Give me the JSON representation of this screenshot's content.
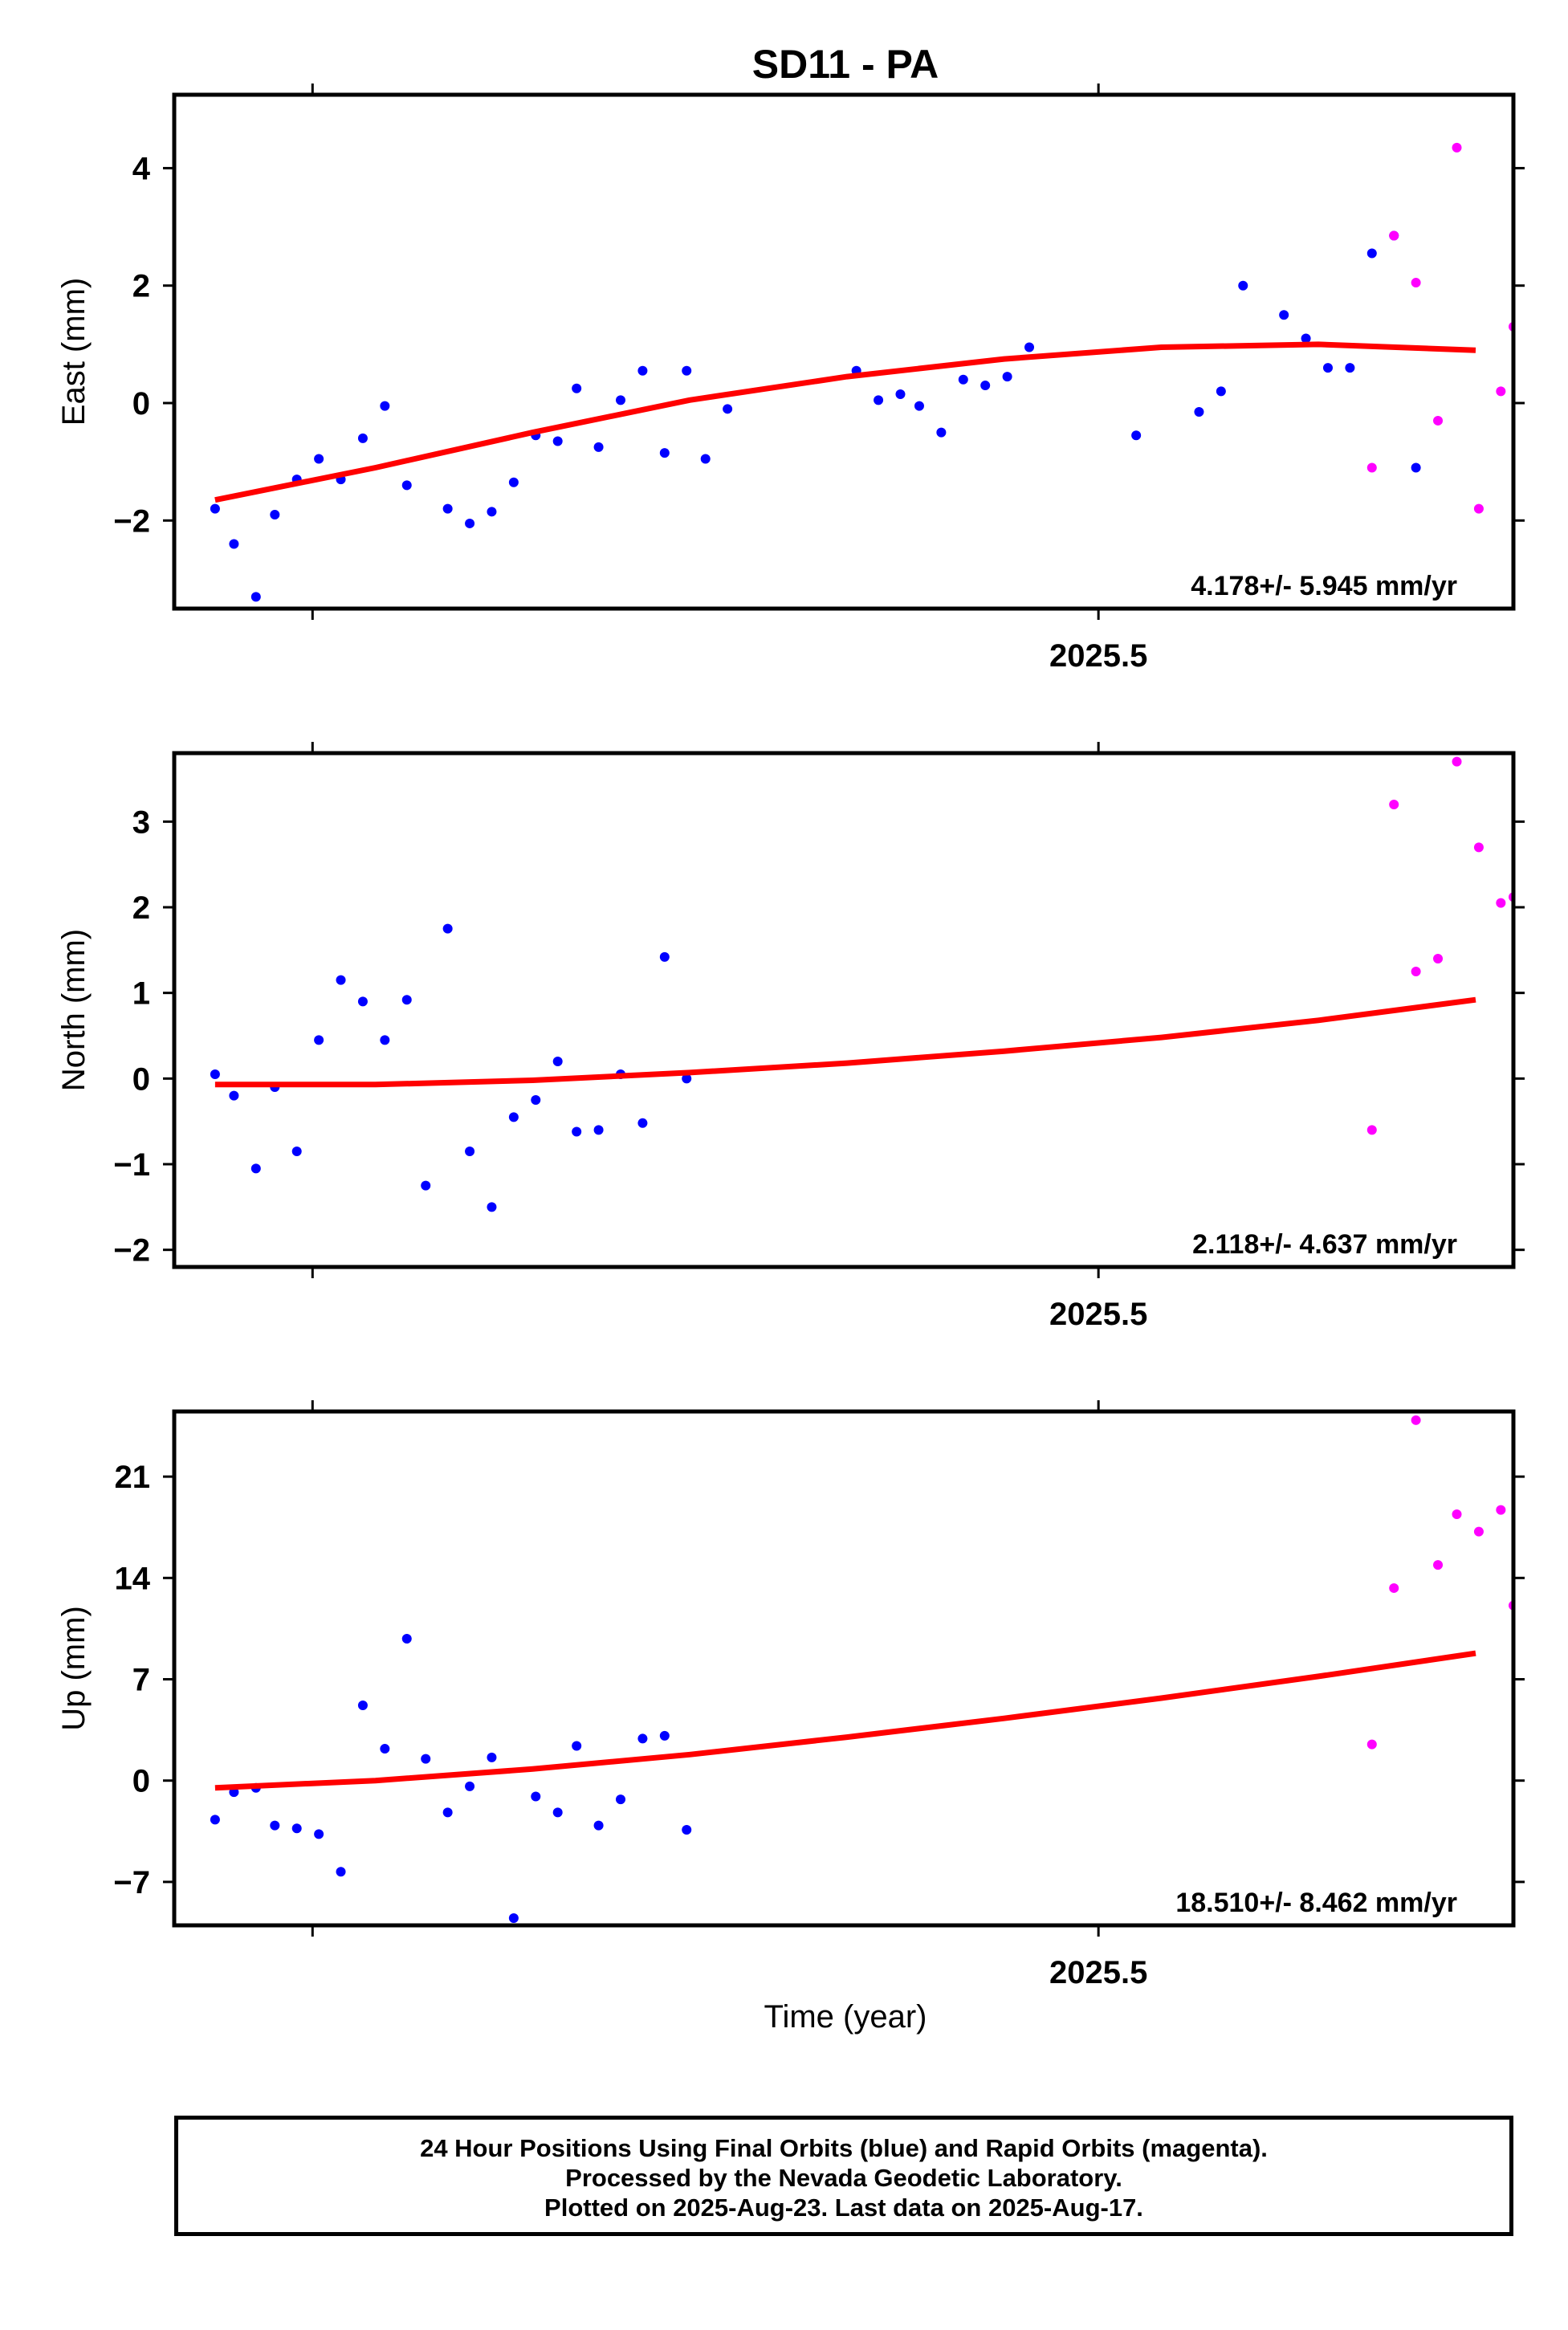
{
  "title": "SD11 - PA",
  "xlabel": "Time (year)",
  "colors": {
    "final": "#0000ff",
    "rapid": "#ff00ff",
    "trend": "#ff0000"
  },
  "footer": {
    "line1": "24 Hour Positions Using Final Orbits (blue) and Rapid Orbits (magenta).",
    "line2": "Processed by the Nevada Geodetic Laboratory.",
    "line3": "Plotted on 2025-Aug-23. Last data on 2025-Aug-17."
  },
  "chart_data": [
    {
      "type": "scatter",
      "ylabel": "East (mm)",
      "xlim": [
        2025.206,
        2025.632
      ],
      "ylim": [
        -3.5,
        5.25
      ],
      "xticks": [
        2025.25,
        2025.5,
        2025.75
      ],
      "xtick_labels": [
        "",
        "2025.5",
        ""
      ],
      "yticks": [
        -2,
        0,
        2,
        4
      ],
      "ytick_labels": [
        "−2",
        "0",
        "2",
        "4"
      ],
      "rate_text": "4.178+/- 5.945 mm/yr",
      "trend": {
        "x": [
          2025.219,
          2025.27,
          2025.32,
          2025.37,
          2025.42,
          2025.47,
          2025.52,
          2025.57,
          2025.62
        ],
        "y": [
          -1.65,
          -1.1,
          -0.5,
          0.05,
          0.45,
          0.75,
          0.95,
          1.0,
          0.9
        ]
      },
      "final": {
        "x": [
          2025.219,
          2025.225,
          2025.232,
          2025.238,
          2025.245,
          2025.252,
          2025.259,
          2025.266,
          2025.273,
          2025.28,
          2025.293,
          2025.3,
          2025.307,
          2025.314,
          2025.321,
          2025.328,
          2025.334,
          2025.341,
          2025.348,
          2025.355,
          2025.362,
          2025.369,
          2025.375,
          2025.382,
          2025.423,
          2025.43,
          2025.437,
          2025.443,
          2025.45,
          2025.457,
          2025.464,
          2025.471,
          2025.478,
          2025.532,
          2025.573,
          2025.546,
          2025.58,
          2025.587,
          2025.594,
          2025.601,
          2025.512,
          2025.539,
          2025.566,
          2025.559
        ],
        "y": [
          -1.8,
          -2.4,
          -3.3,
          -1.9,
          -1.3,
          -0.95,
          -1.3,
          -0.6,
          -0.05,
          -1.4,
          -1.8,
          -2.05,
          -1.85,
          -1.35,
          -0.55,
          -0.65,
          0.25,
          -0.75,
          0.05,
          0.55,
          -0.85,
          0.55,
          -0.95,
          -0.1,
          0.55,
          0.05,
          0.15,
          -0.05,
          -0.5,
          0.4,
          0.3,
          0.45,
          0.95,
          -0.15,
          0.6,
          2.0,
          0.6,
          2.55,
          2.85,
          -1.1,
          -0.55,
          0.2,
          1.1,
          1.5
        ],
        "note": ""
      },
      "rapid": {
        "x": [
          2025.587,
          2025.594,
          2025.601,
          2025.608,
          2025.614,
          2025.621,
          2025.628,
          2025.632
        ],
        "y": [
          -1.1,
          2.85,
          2.05,
          -0.3,
          4.35,
          -1.8,
          0.2,
          1.3
        ]
      }
    },
    {
      "type": "scatter",
      "ylabel": "North (mm)",
      "xlim": [
        2025.206,
        2025.632
      ],
      "ylim": [
        -2.2,
        3.8
      ],
      "xticks": [
        2025.25,
        2025.5,
        2025.75
      ],
      "xtick_labels": [
        "",
        "2025.5",
        ""
      ],
      "yticks": [
        -2,
        -1,
        0,
        1,
        2,
        3
      ],
      "ytick_labels": [
        "−2",
        "−1",
        "0",
        "1",
        "2",
        "3"
      ],
      "rate_text": "2.118+/- 4.637 mm/yr",
      "trend": {
        "x": [
          2025.219,
          2025.27,
          2025.32,
          2025.37,
          2025.42,
          2025.47,
          2025.52,
          2025.57,
          2025.62
        ],
        "y": [
          -0.07,
          -0.07,
          -0.02,
          0.07,
          0.18,
          0.32,
          0.48,
          0.68,
          0.92
        ]
      },
      "final": {
        "x": [
          2025.219,
          2025.225,
          2025.232,
          2025.238,
          2025.245,
          2025.252,
          2025.259,
          2025.266,
          2025.273,
          2025.28,
          2025.286,
          2025.293,
          2025.3,
          2025.307,
          2025.314,
          2025.321,
          2025.328,
          2025.334,
          2025.341,
          2025.348,
          2025.355,
          2025.362,
          2025.369
        ],
        "y": [
          0.05,
          -0.2,
          -1.05,
          -0.1,
          -0.85,
          0.45,
          1.15,
          0.9,
          0.45,
          0.92,
          -1.25,
          1.75,
          -0.85,
          -1.5,
          -0.45,
          -0.25,
          0.2,
          -0.62,
          -0.6,
          0.05,
          -0.52,
          1.42,
          0.0
        ]
      },
      "rapid": {
        "x": [
          2025.587,
          2025.594,
          2025.601,
          2025.608,
          2025.614,
          2025.621,
          2025.628,
          2025.632
        ],
        "y": [
          -0.6,
          3.2,
          1.25,
          1.4,
          3.7,
          2.7,
          2.05,
          2.12
        ]
      }
    },
    {
      "type": "scatter",
      "ylabel": "Up (mm)",
      "xlim": [
        2025.206,
        2025.632
      ],
      "ylim": [
        -10,
        25.5
      ],
      "xticks": [
        2025.25,
        2025.5,
        2025.75
      ],
      "xtick_labels": [
        "",
        "2025.5",
        ""
      ],
      "yticks": [
        -7,
        0,
        7,
        14,
        21
      ],
      "ytick_labels": [
        "−7",
        "0",
        "7",
        "14",
        "21"
      ],
      "rate_text": "18.510+/- 8.462 mm/yr",
      "trend": {
        "x": [
          2025.219,
          2025.27,
          2025.32,
          2025.37,
          2025.42,
          2025.47,
          2025.52,
          2025.57,
          2025.62
        ],
        "y": [
          -0.5,
          0.0,
          0.8,
          1.8,
          3.0,
          4.3,
          5.7,
          7.2,
          8.8
        ]
      },
      "final": {
        "x": [
          2025.219,
          2025.225,
          2025.232,
          2025.238,
          2025.245,
          2025.252,
          2025.259,
          2025.266,
          2025.273,
          2025.28,
          2025.286,
          2025.293,
          2025.3,
          2025.307,
          2025.314,
          2025.321,
          2025.328,
          2025.334,
          2025.341,
          2025.348,
          2025.355,
          2025.362,
          2025.369
        ],
        "y": [
          -2.7,
          -0.8,
          -0.5,
          -3.1,
          -3.3,
          -3.7,
          -6.3,
          5.2,
          2.2,
          9.8,
          1.5,
          -2.2,
          -0.4,
          1.6,
          -9.5,
          -1.1,
          -2.2,
          2.4,
          -3.1,
          -1.3,
          2.9,
          3.1,
          -3.4
        ]
      },
      "rapid": {
        "x": [
          2025.587,
          2025.594,
          2025.601,
          2025.608,
          2025.614,
          2025.621,
          2025.628,
          2025.632
        ],
        "y": [
          2.5,
          13.3,
          24.9,
          14.9,
          18.4,
          17.2,
          18.7,
          12.1
        ]
      }
    }
  ]
}
